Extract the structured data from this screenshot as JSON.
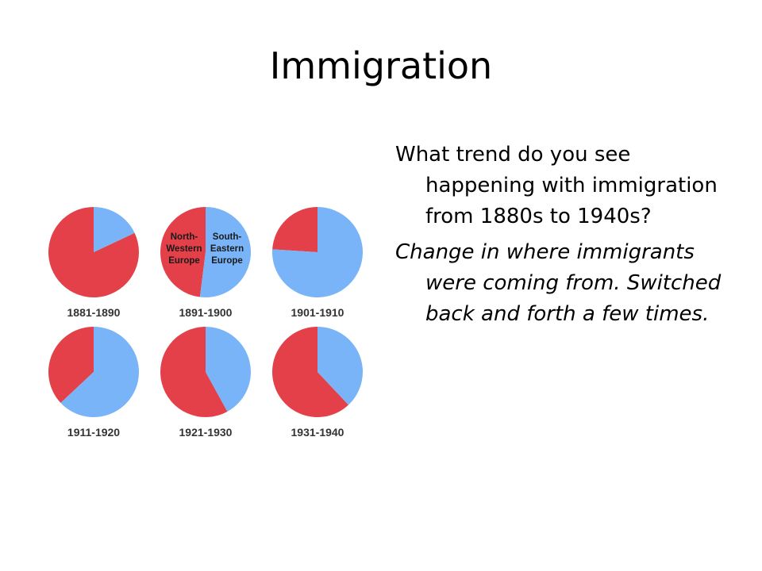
{
  "slide": {
    "title": "Immigration",
    "question": "What trend do you see happening with immigration from 1880s to 1940s?",
    "answer": "Change in where immigrants were coming from. Switched back and forth a few times."
  },
  "colors": {
    "north_western_europe": "#e3404a",
    "south_eastern_europe": "#78b4f7",
    "label_text": "#333333"
  },
  "chart_data": {
    "type": "pie",
    "series_names": [
      "North-Western Europe",
      "South-Eastern Europe"
    ],
    "legend_labels": {
      "north_western": [
        "North-",
        "Western",
        "Europe"
      ],
      "south_eastern": [
        "South-",
        "Eastern",
        "Europe"
      ]
    },
    "pies": [
      {
        "label": "1881-1890",
        "north_western_europe": 82,
        "south_eastern_europe": 18
      },
      {
        "label": "1891-1900",
        "north_western_europe": 48,
        "south_eastern_europe": 52
      },
      {
        "label": "1901-1910",
        "north_western_europe": 24,
        "south_eastern_europe": 76
      },
      {
        "label": "1911-1920",
        "north_western_europe": 37,
        "south_eastern_europe": 63
      },
      {
        "label": "1921-1930",
        "north_western_europe": 58,
        "south_eastern_europe": 42
      },
      {
        "label": "1931-1940",
        "north_western_europe": 62,
        "south_eastern_europe": 38
      }
    ]
  }
}
